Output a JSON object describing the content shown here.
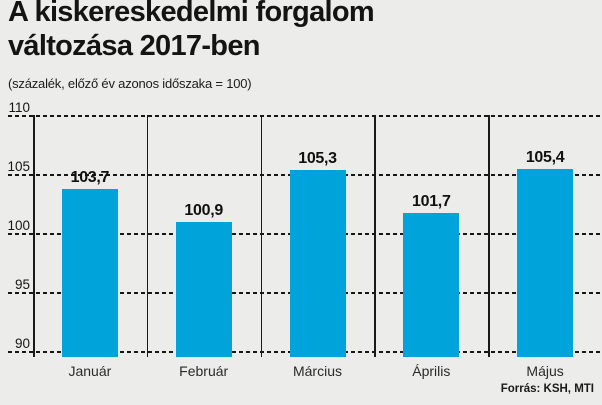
{
  "title": "A kiskereskedelmi forgalom változása 2017-ben",
  "subtitle": "(százalék, előző év azonos időszaka = 100)",
  "source": "Forrás: KSH, MTI",
  "colors": {
    "bar": "#00a3da",
    "background": "#ececea",
    "grid": "#161616",
    "text": "#141414"
  },
  "chart_data": {
    "type": "bar",
    "title": "A kiskereskedelmi forgalom változása 2017-ben",
    "subtitle": "(százalék, előző év azonos időszaka = 100)",
    "categories": [
      "Január",
      "Február",
      "Március",
      "Április",
      "Május"
    ],
    "values": [
      103.7,
      100.9,
      105.3,
      101.7,
      105.4
    ],
    "value_labels": [
      "103,7",
      "100,9",
      "105,3",
      "101,7",
      "105,4"
    ],
    "xlabel": "",
    "ylabel": "",
    "ylim": [
      90,
      110
    ],
    "yticks": [
      110,
      105,
      100,
      95,
      90
    ],
    "grid": "horizontal dashed gridlines, solid vertical column separators",
    "legend": false,
    "source": "Forrás: KSH, MTI"
  }
}
